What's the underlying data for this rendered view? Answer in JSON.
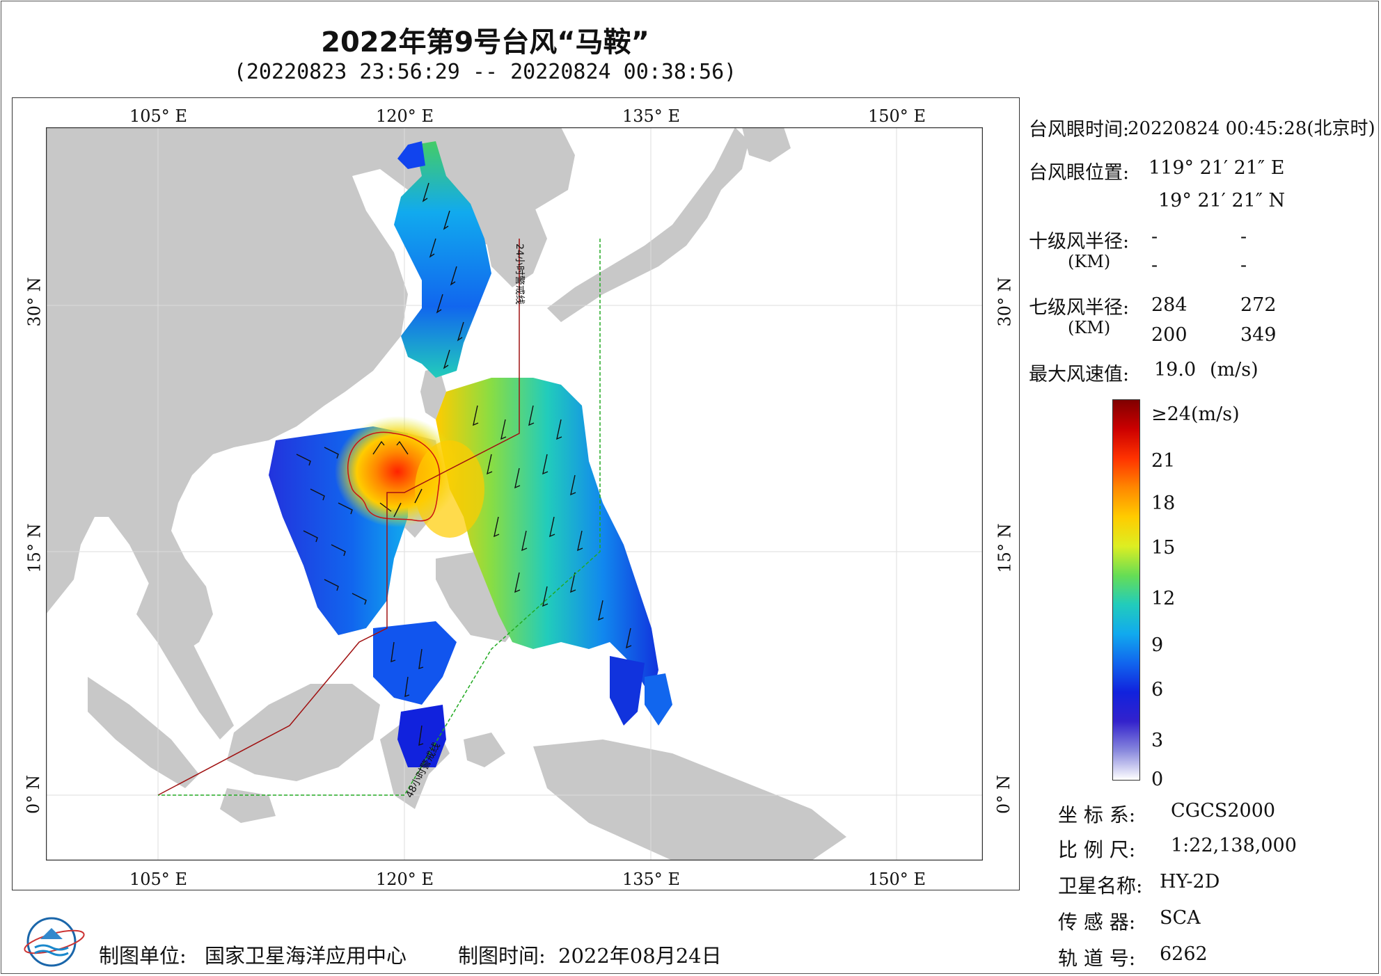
{
  "title": "2022年第9号台风“马鞍”",
  "subtitle": "(20220823 23:56:29 -- 20220824 00:38:56)",
  "map": {
    "lon_ticks": [
      "105° E",
      "120° E",
      "135° E",
      "150° E"
    ],
    "lat_ticks": [
      "30° N",
      "15° N",
      "0° N"
    ],
    "line_24h_label": "24小时警戒线",
    "line_48h_label": "48小时警戒线",
    "colors": {
      "land": "#c8c8c8",
      "sea": "#ffffff",
      "warn24": "#a01010",
      "warn48": "#22aa22"
    }
  },
  "info": {
    "eye_time_label": "台风眼时间:",
    "eye_time_value": "20220824 00:45:28(北京时)",
    "eye_pos_label": "台风眼位置:",
    "eye_lon": "119° 21′ 21″ E",
    "eye_lat": "19° 21′ 21″ N",
    "r10_label": "十级风半径:",
    "r10_unit": "(KM)",
    "r10_values": [
      "-",
      "-",
      "-",
      "-"
    ],
    "r7_label": "七级风半径:",
    "r7_unit": "(KM)",
    "r7_values": [
      "284",
      "272",
      "200",
      "349"
    ],
    "max_wind_label": "最大风速值:",
    "max_wind_value": "19.0",
    "max_wind_unit": "(m/s)"
  },
  "colorbar": {
    "labels": [
      "≥24(m/s)",
      "21",
      "18",
      "15",
      "12",
      "9",
      "6",
      "3",
      "0"
    ],
    "stops": [
      "#800000",
      "#cc0000",
      "#ff3300",
      "#ff8800",
      "#ffcc00",
      "#ddee22",
      "#66dd55",
      "#22ccbb",
      "#11aaee",
      "#1166ee",
      "#1122dd",
      "#3322cc",
      "#8888dd",
      "#ffffff"
    ]
  },
  "meta": {
    "crs_label": "坐 标 系:",
    "crs_value": "CGCS2000",
    "scale_label": "比 例 尺:",
    "scale_value": "1:22,138,000",
    "sat_label": "卫星名称:",
    "sat_value": "HY-2D",
    "sensor_label": "传 感 器:",
    "sensor_value": "SCA",
    "orbit_label": "轨 道 号:",
    "orbit_value": "6262"
  },
  "footer": {
    "unit_label": "制图单位:",
    "unit_value": "国家卫星海洋应用中心",
    "time_label": "制图时间:",
    "time_value": "2022年08月24日"
  }
}
